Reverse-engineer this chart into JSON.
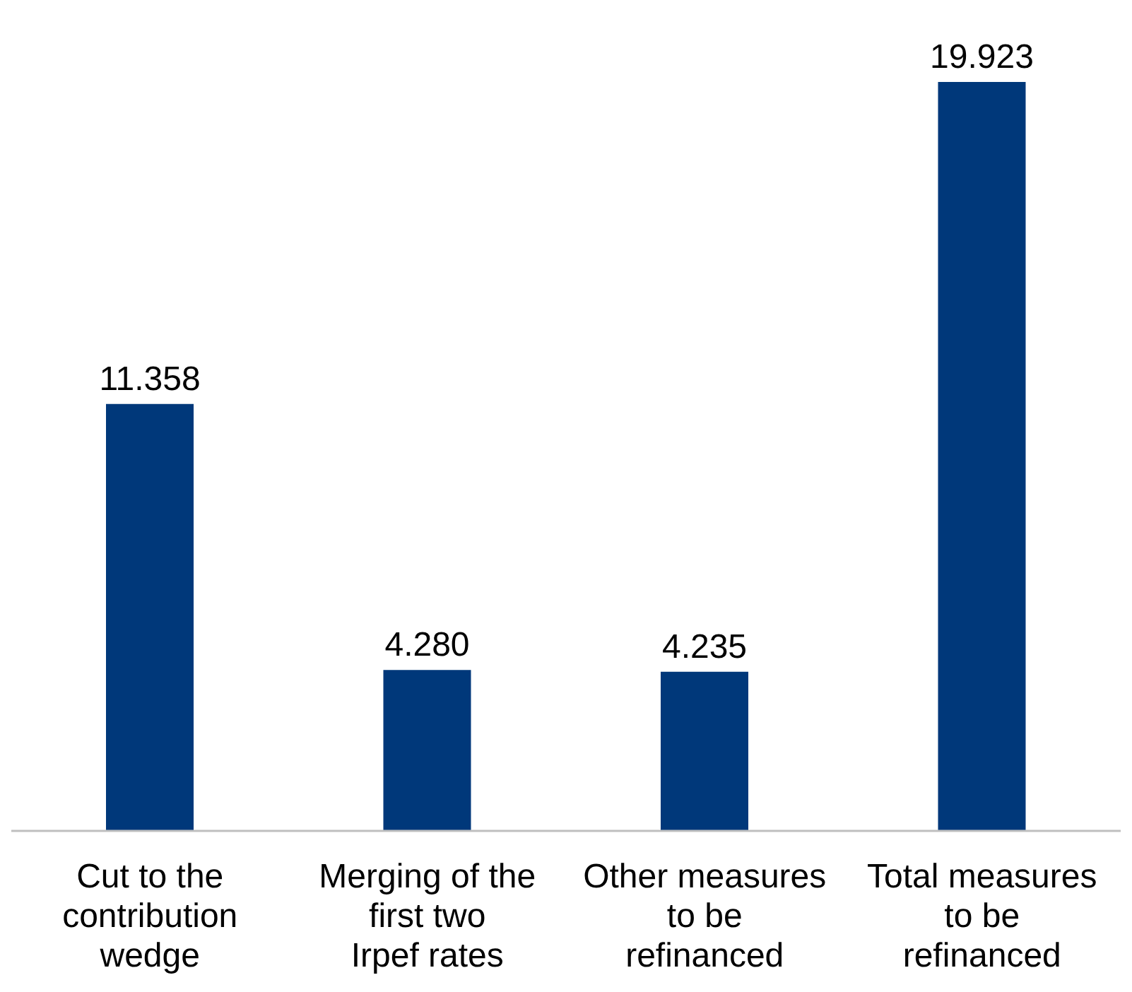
{
  "chart_data": {
    "type": "bar",
    "categories": [
      "Cut to the contribution wedge",
      "Merging of the first two Irpef rates",
      "Other measures to be refinanced",
      "Total measures to be refinanced"
    ],
    "values": [
      11358,
      4280,
      4235,
      19923
    ],
    "value_labels": [
      "11.358",
      "4.280",
      "4.235",
      "19.923"
    ],
    "color": "#00387a",
    "tick_labels": "x"
  }
}
